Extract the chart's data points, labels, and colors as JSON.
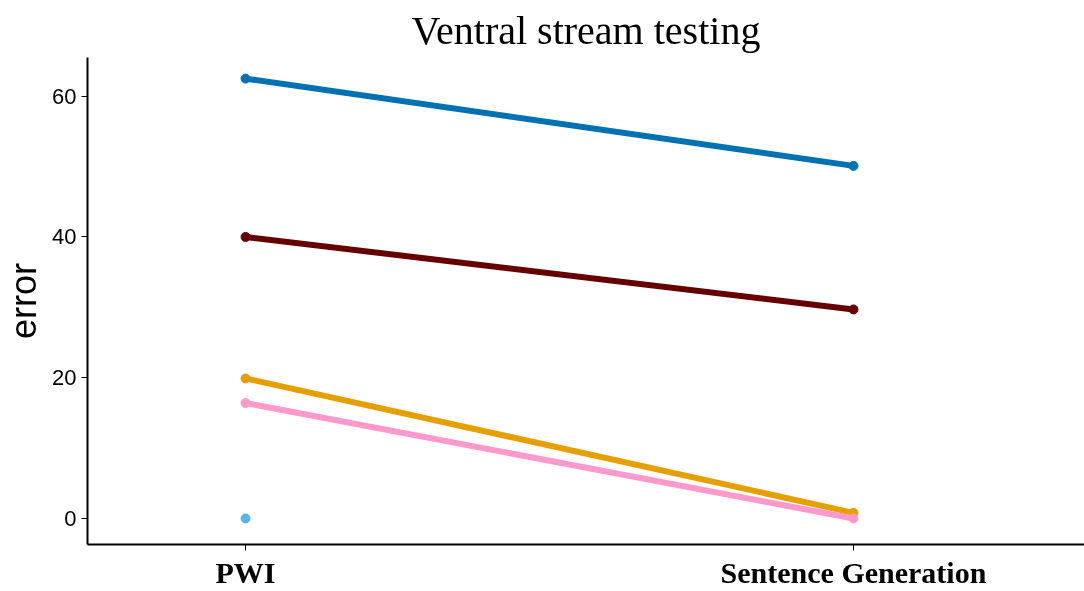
{
  "chart_data": {
    "type": "line",
    "title": "Ventral stream testing",
    "ylabel": "error",
    "categories": [
      "PWI",
      "Sentence Generation"
    ],
    "series": [
      {
        "color": "#0072b2",
        "values": [
          62.5,
          50.1
        ]
      },
      {
        "color": "#660000",
        "values": [
          40,
          29.7
        ]
      },
      {
        "color": "#e69f00",
        "values": [
          19.9,
          0.8
        ]
      },
      {
        "color": "#ff99cc",
        "values": [
          16.4,
          0
        ]
      },
      {
        "color": "#56b4e9",
        "values": [
          0,
          null
        ]
      }
    ],
    "ylim": [
      -3.7,
      65.5
    ],
    "yticks": [
      0,
      20,
      40,
      60
    ],
    "grid": false,
    "marker": "circle",
    "line_style": "solid"
  }
}
